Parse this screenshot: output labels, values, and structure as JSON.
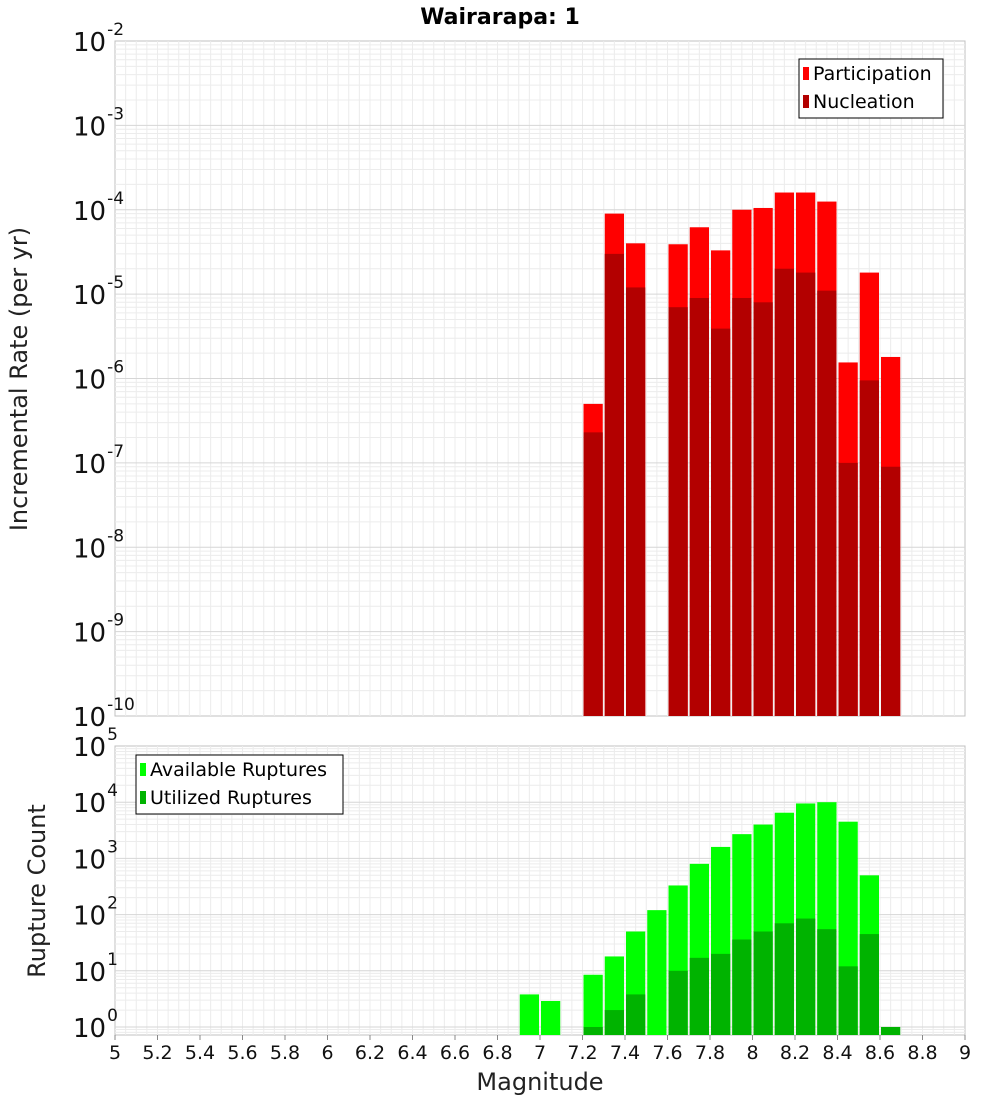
{
  "chart_data": [
    {
      "type": "bar",
      "title": "Wairarapa: 1",
      "xlabel": "",
      "ylabel": "Incremental Rate (per yr)",
      "yscale": "log",
      "ylim": [
        1e-10,
        0.01
      ],
      "xlim": [
        5,
        9
      ],
      "bar_width": 0.1,
      "grid": true,
      "legend_position": "top-right",
      "y_tick_exponents": [
        -10,
        -9,
        -8,
        -7,
        -6,
        -5,
        -4,
        -3,
        -2
      ],
      "series": [
        {
          "name": "Participation",
          "color": "#ff0000",
          "x": [
            7.25,
            7.35,
            7.45,
            7.65,
            7.75,
            7.85,
            7.95,
            8.05,
            8.15,
            8.25,
            8.35,
            8.45,
            8.55,
            8.65
          ],
          "values": [
            5e-07,
            9e-05,
            4e-05,
            3.9e-05,
            6.2e-05,
            3.3e-05,
            0.0001,
            0.000105,
            0.00016,
            0.00016,
            0.000125,
            1.55e-06,
            1.8e-05,
            1.8e-06
          ]
        },
        {
          "name": "Nucleation",
          "color": "#b30000",
          "x": [
            7.25,
            7.35,
            7.45,
            7.65,
            7.75,
            7.85,
            7.95,
            8.05,
            8.15,
            8.25,
            8.35,
            8.45,
            8.55,
            8.65
          ],
          "values": [
            2.3e-07,
            3e-05,
            1.2e-05,
            7e-06,
            9e-06,
            3.9e-06,
            9e-06,
            8e-06,
            2e-05,
            1.8e-05,
            1.1e-05,
            1e-07,
            9.5e-07,
            9e-08
          ]
        }
      ]
    },
    {
      "type": "bar",
      "title": "",
      "xlabel": "Magnitude",
      "ylabel": "Rupture Count",
      "yscale": "log",
      "ylim": [
        0.72,
        100000.0
      ],
      "xlim": [
        5,
        9
      ],
      "bar_width": 0.1,
      "grid": true,
      "legend_position": "top-left",
      "x_ticks": [
        "5",
        "5.2",
        "5.4",
        "5.6",
        "5.8",
        "6",
        "6.2",
        "6.4",
        "6.6",
        "6.8",
        "7",
        "7.2",
        "7.4",
        "7.6",
        "7.8",
        "8",
        "8.2",
        "8.4",
        "8.6",
        "8.8",
        "9"
      ],
      "y_tick_exponents": [
        0,
        1,
        2,
        3,
        4,
        5
      ],
      "series": [
        {
          "name": "Available Ruptures",
          "color": "#00ff00",
          "x": [
            6.95,
            7.05,
            7.25,
            7.35,
            7.45,
            7.55,
            7.65,
            7.75,
            7.85,
            7.95,
            8.05,
            8.15,
            8.25,
            8.35,
            8.45,
            8.55
          ],
          "values": [
            3.8,
            2.9,
            8.5,
            18,
            50,
            120,
            330,
            800,
            1600,
            2700,
            4000,
            6500,
            9500,
            10000,
            4500,
            500
          ]
        },
        {
          "name": "Utilized Ruptures",
          "color": "#00b300",
          "x": [
            7.25,
            7.35,
            7.45,
            7.65,
            7.75,
            7.85,
            7.95,
            8.05,
            8.15,
            8.25,
            8.35,
            8.45,
            8.55,
            8.65
          ],
          "values": [
            1,
            2,
            3.8,
            10,
            17,
            20,
            36,
            50,
            70,
            85,
            55,
            12,
            45,
            1
          ]
        }
      ]
    }
  ]
}
